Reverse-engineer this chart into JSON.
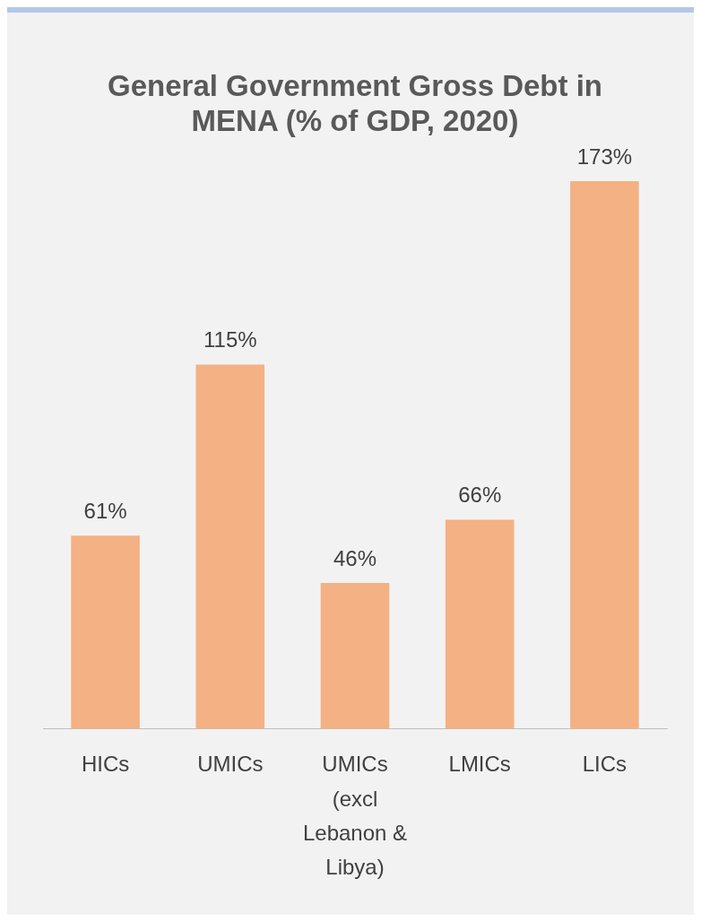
{
  "chart_data": {
    "type": "bar",
    "title": "General Government Gross Debt in MENA (% of GDP, 2020)",
    "categories": [
      "HICs",
      "UMICs",
      "UMICs (excl Lebanon & Libya)",
      "LMICs",
      "LICs"
    ],
    "values": [
      61,
      115,
      46,
      66,
      173
    ],
    "value_labels": [
      "61%",
      "115%",
      "46%",
      "66%",
      "173%"
    ],
    "color": "#f4b183",
    "grid": false,
    "legend": false,
    "tick_labels": "x"
  }
}
